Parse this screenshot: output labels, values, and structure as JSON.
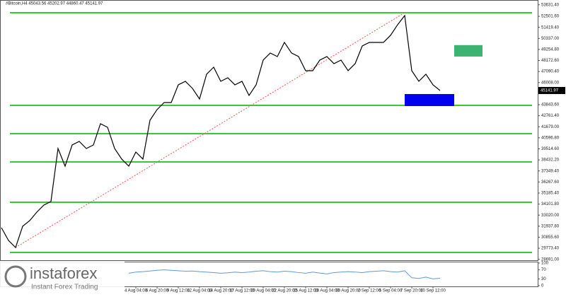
{
  "chart_data": {
    "type": "line",
    "title": "#Bitcoin,H4  45043.56 45202.97 44860.47 45141.97",
    "price_label": "45141.97",
    "brand": "instaforex",
    "brand_tagline": "Instant Forex Trading",
    "color": "#000000",
    "values": [
      31788,
      30540,
      29847,
      31926,
      32480,
      33312,
      34005,
      34352,
      39549,
      37817,
      39896,
      40242,
      39549,
      39896,
      41975,
      41628,
      39549,
      38510,
      37817,
      39203,
      38510,
      42321,
      43361,
      44054,
      44054,
      45786,
      46133,
      45440,
      44400,
      46826,
      47519,
      46133,
      46480,
      45786,
      46133,
      44747,
      45786,
      48212,
      48905,
      48558,
      49944,
      48905,
      48558,
      47172,
      47172,
      48212,
      48558,
      47865,
      48212,
      47172,
      47865,
      49598,
      49944,
      49944,
      49944,
      50637,
      51677,
      52578,
      47172,
      46133,
      46826,
      45786,
      45232
    ],
    "ylim": [
      28600,
      54100
    ],
    "yticks": [
      {
        "value": 28691.0,
        "label": "28691.00"
      },
      {
        "value": 29773.4,
        "label": "29773.40"
      },
      {
        "value": 30855.6,
        "label": "30855.60"
      },
      {
        "value": 31937.8,
        "label": "31937.80"
      },
      {
        "value": 33020.0,
        "label": "33020.00"
      },
      {
        "value": 34101.8,
        "label": "34101.80"
      },
      {
        "value": 35185.4,
        "label": "35185.40"
      },
      {
        "value": 36267.6,
        "label": "36267.60"
      },
      {
        "value": 37349.4,
        "label": "37349.40"
      },
      {
        "value": 38432.2,
        "label": "38432.20"
      },
      {
        "value": 39514.6,
        "label": "39514.60"
      },
      {
        "value": 40596.8,
        "label": "40596.80"
      },
      {
        "value": 41679.0,
        "label": "41679.00"
      },
      {
        "value": 42761.4,
        "label": "42761.40"
      },
      {
        "value": 43843.6,
        "label": "43843.60"
      },
      {
        "value": 46008.0,
        "label": "46008.00"
      },
      {
        "value": 47090.4,
        "label": "47090.40"
      },
      {
        "value": 48172.6,
        "label": "48172.60"
      },
      {
        "value": 49254.8,
        "label": "49254.80"
      },
      {
        "value": 50337.0,
        "label": "50337.00"
      },
      {
        "value": 51419.4,
        "label": "51419.40"
      },
      {
        "value": 52501.6,
        "label": "52501.60"
      },
      {
        "value": 53631.4,
        "label": "53631.40"
      }
    ],
    "xticks": [
      {
        "value": 19,
        "label": "4 Aug 04:00"
      },
      {
        "value": 22,
        "label": "6 Aug 20:00"
      },
      {
        "value": 25,
        "label": "9 Aug 12:00"
      },
      {
        "value": 28,
        "label": "12 Aug 04:00"
      },
      {
        "value": 31,
        "label": "14 Aug 20:00"
      },
      {
        "value": 34,
        "label": "17 Aug 12:00"
      },
      {
        "value": 37,
        "label": "20 Aug 04:00"
      },
      {
        "value": 40,
        "label": "22 Aug 20:00"
      },
      {
        "value": 43,
        "label": "25 Aug 12:00"
      },
      {
        "value": 46,
        "label": "28 Aug 04:00"
      },
      {
        "value": 49,
        "label": "30 Aug 20:00"
      },
      {
        "value": 52,
        "label": "2 Sep 12:00"
      },
      {
        "value": 55,
        "label": "5 Sep 04:00"
      },
      {
        "value": 58,
        "label": "7 Sep 20:00"
      },
      {
        "value": 61,
        "label": "10 Sep 12:00"
      }
    ],
    "levels": {
      "color": "#33cc33",
      "values": [
        52853,
        43775,
        41003,
        38232,
        34282,
        29362
      ]
    },
    "zones": [
      {
        "color": "#3cb371",
        "values": [
          49680,
          48560
        ],
        "x": [
          64,
          68
        ]
      },
      {
        "color": "#0000ee",
        "values": [
          44884,
          43706
        ],
        "x": [
          57,
          64
        ]
      }
    ],
    "trendline": {
      "color": "#ff4d4d",
      "x": [
        2,
        57
      ],
      "values": [
        29847,
        52853
      ]
    },
    "rsi": {
      "color": "#5b9bd5",
      "ylim": [
        0,
        100
      ],
      "yticks": [
        100,
        70,
        30,
        0
      ],
      "values": [
        null,
        null,
        null,
        null,
        null,
        null,
        null,
        null,
        null,
        null,
        null,
        null,
        null,
        null,
        null,
        null,
        null,
        null,
        55,
        60,
        62,
        65,
        68,
        70,
        68,
        66,
        64,
        65,
        62,
        60,
        58,
        55,
        57,
        60,
        58,
        60,
        64,
        66,
        62,
        60,
        64,
        62,
        58,
        55,
        60,
        56,
        52,
        58,
        60,
        62,
        60,
        58,
        62,
        64,
        66,
        62,
        60,
        66,
        35,
        32,
        38,
        30,
        33
      ]
    }
  }
}
